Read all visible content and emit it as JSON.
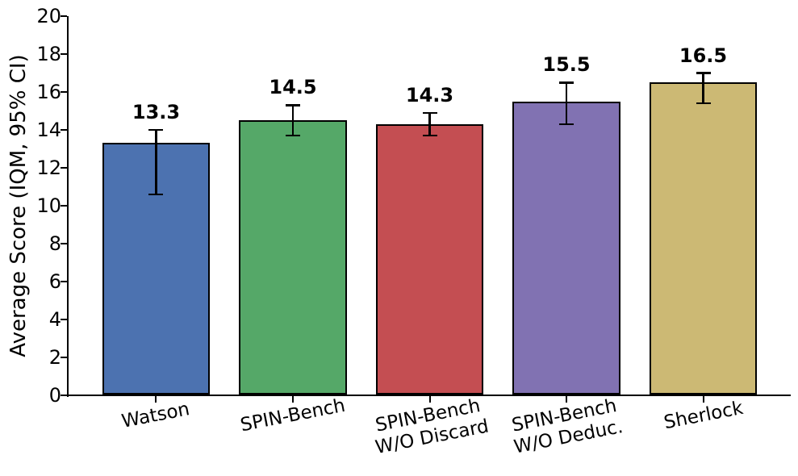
{
  "chart_data": {
    "type": "bar",
    "title": "",
    "xlabel": "",
    "ylabel": "Average Score (IQM, 95% CI)",
    "categories": [
      "Watson",
      "SPIN-Bench",
      "SPIN-Bench\nW/O Discard",
      "SPIN-Bench\nW/O Deduc.",
      "Sherlock"
    ],
    "values": [
      13.3,
      14.5,
      14.3,
      15.5,
      16.5
    ],
    "value_labels": [
      "13.3",
      "14.5",
      "14.3",
      "15.5",
      "16.5"
    ],
    "error_low": [
      10.6,
      13.7,
      13.7,
      14.3,
      15.4
    ],
    "error_high": [
      14.0,
      15.3,
      14.9,
      16.5,
      17.0
    ],
    "bar_colors": [
      "#4c72b0",
      "#55a868",
      "#c44e52",
      "#8172b2",
      "#ccb974"
    ],
    "bar_edge_color": "#000000",
    "error_bar_color": "#000000",
    "axis_color": "#000000",
    "background_color": "#ffffff",
    "ylim": [
      0,
      20
    ],
    "yticks": [
      0,
      2,
      4,
      6,
      8,
      10,
      12,
      14,
      16,
      18,
      20
    ],
    "grid": false,
    "legend_position": "none",
    "x_tick_rotation_deg": 11,
    "error_bar_style": "capped whiskers, 95% confidence interval"
  }
}
